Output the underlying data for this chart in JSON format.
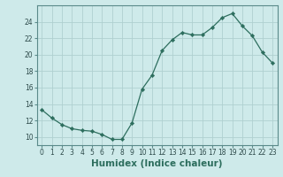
{
  "x": [
    0,
    1,
    2,
    3,
    4,
    5,
    6,
    7,
    8,
    9,
    10,
    11,
    12,
    13,
    14,
    15,
    16,
    17,
    18,
    19,
    20,
    21,
    22,
    23
  ],
  "y": [
    13.3,
    12.3,
    11.5,
    11.0,
    10.8,
    10.7,
    10.3,
    9.7,
    9.7,
    11.7,
    15.8,
    17.5,
    20.5,
    21.8,
    22.7,
    22.4,
    22.4,
    23.3,
    24.5,
    25.0,
    23.5,
    22.3,
    20.3,
    19.0
  ],
  "ylim": [
    9,
    26
  ],
  "yticks": [
    10,
    12,
    14,
    16,
    18,
    20,
    22,
    24
  ],
  "xticks": [
    0,
    1,
    2,
    3,
    4,
    5,
    6,
    7,
    8,
    9,
    10,
    11,
    12,
    13,
    14,
    15,
    16,
    17,
    18,
    19,
    20,
    21,
    22,
    23
  ],
  "xlabel": "Humidex (Indice chaleur)",
  "line_color": "#2d6e5e",
  "marker_color": "#2d6e5e",
  "bg_color": "#ceeaea",
  "grid_color": "#b0d0d0",
  "tick_label_fontsize": 5.5,
  "xlabel_fontsize": 7.5,
  "marker": "D",
  "marker_size": 2.2,
  "linewidth": 0.9
}
